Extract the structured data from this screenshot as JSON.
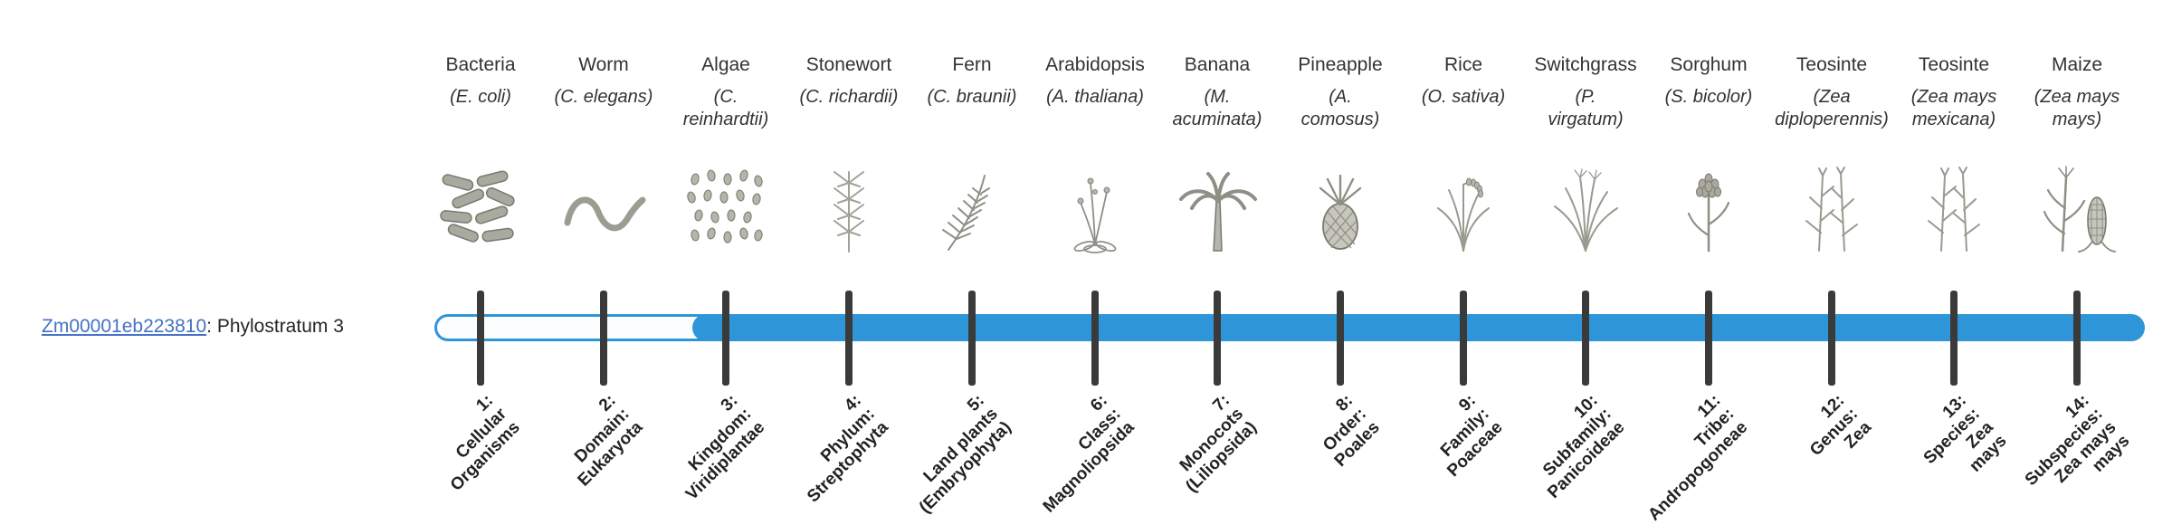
{
  "colors": {
    "timeline_fill": "#2e96d8",
    "tick": "#3a3a3a",
    "link": "#4472c4"
  },
  "gene": {
    "id": "Zm00001eb223810",
    "suffix": ": Phylostratum 3",
    "phylostratum": 3
  },
  "timeline": {
    "stratum_count": 14,
    "filled_from_stratum": 3
  },
  "organisms": [
    {
      "common_name": "Bacteria",
      "scientific_name": "(E. coli)",
      "icon": "bacteria-icon",
      "stage_label": "1:\nCellular\nOrganisms"
    },
    {
      "common_name": "Worm",
      "scientific_name": "(C. elegans)",
      "icon": "worm-icon",
      "stage_label": "2:\nDomain:\nEukaryota"
    },
    {
      "common_name": "Algae",
      "scientific_name": "(C.\nreinhardtii)",
      "icon": "algae-icon",
      "stage_label": "3:\nKingdom:\nViridiplantae"
    },
    {
      "common_name": "Stonewort",
      "scientific_name": "(C. richardii)",
      "icon": "stonewort-icon",
      "stage_label": "4:\nPhylum:\nStreptophyta"
    },
    {
      "common_name": "Fern",
      "scientific_name": "(C. braunii)",
      "icon": "fern-icon",
      "stage_label": "5:\nLand plants\n(Embryophyta)"
    },
    {
      "common_name": "Arabidopsis",
      "scientific_name": "(A. thaliana)",
      "icon": "arabidopsis-icon",
      "stage_label": "6:\nClass:\nMagnoliopsida"
    },
    {
      "common_name": "Banana",
      "scientific_name": "(M.\nacuminata)",
      "icon": "banana-icon",
      "stage_label": "7:\nMonocots\n(Liliopsida)"
    },
    {
      "common_name": "Pineapple",
      "scientific_name": "(A.\ncomosus)",
      "icon": "pineapple-icon",
      "stage_label": "8:\nOrder:\nPoales"
    },
    {
      "common_name": "Rice",
      "scientific_name": "(O. sativa)",
      "icon": "rice-icon",
      "stage_label": "9:\nFamily:\nPoaceae"
    },
    {
      "common_name": "Switchgrass",
      "scientific_name": "(P.\nvirgatum)",
      "icon": "switchgrass-icon",
      "stage_label": "10:\nSubfamily:\nPanicoideae"
    },
    {
      "common_name": "Sorghum",
      "scientific_name": "(S. bicolor)",
      "icon": "sorghum-icon",
      "stage_label": "11:\nTribe:\nAndropogoneae"
    },
    {
      "common_name": "Teosinte",
      "scientific_name": "(Zea\ndiploperennis)",
      "icon": "teosinte-diploperennis-icon",
      "stage_label": "12:\nGenus:\nZea"
    },
    {
      "common_name": "Teosinte",
      "scientific_name": "(Zea mays\nmexicana)",
      "icon": "teosinte-mexicana-icon",
      "stage_label": "13:\nSpecies:\nZea\nmays"
    },
    {
      "common_name": "Maize",
      "scientific_name": "(Zea mays\nmays)",
      "icon": "maize-icon",
      "stage_label": "14:\nSubspecies:\nZea mays\nmays"
    }
  ]
}
